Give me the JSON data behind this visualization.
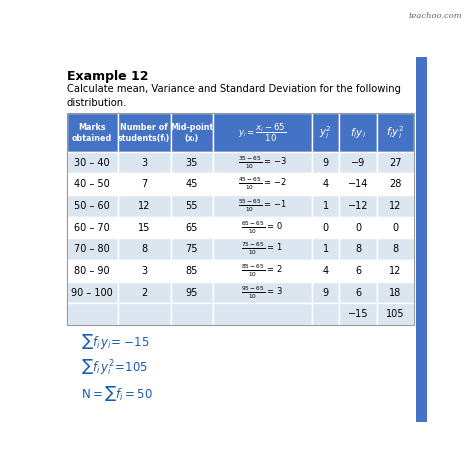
{
  "title": "Example 12",
  "subtitle": "Calculate mean, Variance and Standard Deviation for the following\ndistribution.",
  "watermark": "teachoo.com",
  "header_bg": "#4472c4",
  "header_text_color": "#ffffff",
  "row_bg_odd": "#dce6f1",
  "row_bg_even": "#ffffff",
  "total_row_bg": "#dce6f1",
  "rows_data": [
    [
      "30 – 40",
      "3",
      "35",
      "35",
      "9",
      "−9",
      "27"
    ],
    [
      "40 – 50",
      "7",
      "45",
      "45",
      "4",
      "−14",
      "28"
    ],
    [
      "50 – 60",
      "12",
      "55",
      "55",
      "1",
      "−12",
      "12"
    ],
    [
      "60 – 70",
      "15",
      "65",
      "65",
      "0",
      "0",
      "0"
    ],
    [
      "70 – 80",
      "8",
      "75",
      "75",
      "1",
      "8",
      "8"
    ],
    [
      "80 – 90",
      "3",
      "85",
      "85",
      "4",
      "6",
      "12"
    ],
    [
      "90 – 100",
      "2",
      "95",
      "95",
      "9",
      "6",
      "18"
    ]
  ],
  "yi_results": [
    "−3",
    "−2",
    "−1",
    "0",
    "1",
    "2",
    "3"
  ],
  "total_fiy": "−15",
  "total_fiyi2": "105",
  "bg_color": "#ffffff",
  "right_bar_color": "#4472c4",
  "summary_color": "#1a5cb0"
}
